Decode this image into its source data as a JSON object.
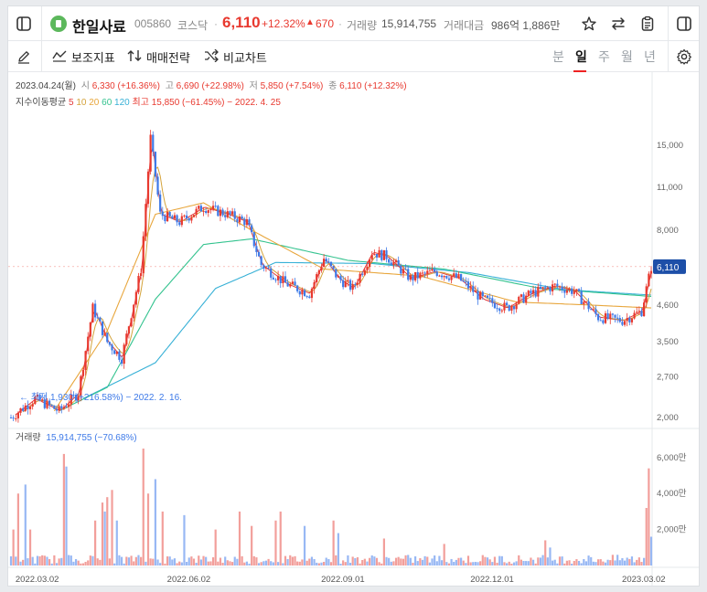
{
  "header": {
    "stock_name": "한일사료",
    "stock_code": "005860",
    "market": "코스닥",
    "price": "6,110",
    "change_pct": "+12.32%",
    "change_arrow": "▲",
    "change_abs": "670",
    "dot": "·",
    "volume_label": "거래량",
    "volume_value": "15,914,755",
    "amount_label": "거래대금",
    "amount_value": "986억 1,886만"
  },
  "toolbar": {
    "indicator_label": "보조지표",
    "strategy_label": "매매전략",
    "compare_label": "비교차트",
    "periods": [
      "분",
      "일",
      "주",
      "월",
      "년"
    ],
    "active_period": "일"
  },
  "info": {
    "date": "2023.04.24(월)",
    "open_label": "시",
    "open_value": "6,330 (+16.36%)",
    "high_label": "고",
    "high_value": "6,690 (+22.98%)",
    "low_label": "저",
    "low_value": "5,850 (+7.54%)",
    "close_label": "종",
    "close_value": "6,110 (+12.32%)"
  },
  "ma_legend": {
    "label": "지수이동평균",
    "periods": [
      "5",
      "10",
      "20",
      "60",
      "120"
    ],
    "high_note": "최고 15,850 (−61.45%) − 2022. 4. 25",
    "low_note": "← 최저 1,930 (+216.58%) − 2022. 2. 16."
  },
  "volume_info": {
    "label": "거래량",
    "value": "15,914,755 (−70.68%)"
  },
  "price_badge": "6,110",
  "colors": {
    "up": "#e8392f",
    "down": "#3e7ae8",
    "vol_up": "#f29f9b",
    "vol_down": "#98b8f4",
    "ma5": "#e23a3a",
    "ma10": "#d4a33b",
    "ma20": "#e8a63c",
    "ma60": "#34c38f",
    "ma120": "#36b0d6"
  },
  "icons": [
    "panel-left-icon",
    "star-icon",
    "swap-icon",
    "clipboard-icon",
    "panel-right-icon",
    "pencil-icon",
    "indicator-icon",
    "strategy-icon",
    "shuffle-icon",
    "gear-icon"
  ],
  "chart_data": {
    "type": "candlestick",
    "x_ticks": [
      "2022.03.02",
      "2022.06.02",
      "2022.09.01",
      "2022.12.01",
      "2023.03.02"
    ],
    "y_ticks": [
      "15,000",
      "11,000",
      "8,000",
      "6,000",
      "4,600",
      "3,500",
      "2,700",
      "2,000"
    ],
    "y_tick_values": [
      15000,
      11000,
      8000,
      6000,
      4600,
      3500,
      2700,
      2000
    ],
    "y_scale": "log",
    "vol_ticks": [
      "6,000만",
      "4,000만",
      "2,000만"
    ],
    "vol_tick_values": [
      60000000,
      40000000,
      20000000
    ],
    "close_path": [
      [
        0,
        2000
      ],
      [
        10,
        2300
      ],
      [
        20,
        2100
      ],
      [
        28,
        2400
      ],
      [
        34,
        4500
      ],
      [
        40,
        3500
      ],
      [
        46,
        3100
      ],
      [
        54,
        6000
      ],
      [
        58,
        15850
      ],
      [
        62,
        9000
      ],
      [
        70,
        8500
      ],
      [
        80,
        9500
      ],
      [
        90,
        9000
      ],
      [
        98,
        8500
      ],
      [
        104,
        6200
      ],
      [
        114,
        5400
      ],
      [
        124,
        5000
      ],
      [
        130,
        6500
      ],
      [
        136,
        5600
      ],
      [
        142,
        5200
      ],
      [
        150,
        6800
      ],
      [
        156,
        6600
      ],
      [
        166,
        5600
      ],
      [
        176,
        5900
      ],
      [
        186,
        5600
      ],
      [
        196,
        4800
      ],
      [
        206,
        4500
      ],
      [
        216,
        5000
      ],
      [
        226,
        5300
      ],
      [
        234,
        5100
      ],
      [
        244,
        4200
      ],
      [
        254,
        4100
      ],
      [
        262,
        4400
      ],
      [
        266,
        6110
      ]
    ],
    "ma_paths": {
      "ma20": [
        [
          18,
          2100
        ],
        [
          40,
          3800
        ],
        [
          60,
          9000
        ],
        [
          80,
          9800
        ],
        [
          100,
          8000
        ],
        [
          130,
          6000
        ],
        [
          170,
          5700
        ],
        [
          210,
          4700
        ],
        [
          240,
          4600
        ],
        [
          266,
          4500
        ]
      ],
      "ma60": [
        [
          20,
          2100
        ],
        [
          40,
          2500
        ],
        [
          60,
          4800
        ],
        [
          80,
          7200
        ],
        [
          100,
          7500
        ],
        [
          140,
          6400
        ],
        [
          180,
          6000
        ],
        [
          220,
          5200
        ],
        [
          266,
          4900
        ]
      ],
      "ma120": [
        [
          30,
          2300
        ],
        [
          60,
          3000
        ],
        [
          85,
          5200
        ],
        [
          110,
          6300
        ],
        [
          150,
          6250
        ],
        [
          190,
          5850
        ],
        [
          230,
          5150
        ],
        [
          266,
          4950
        ]
      ]
    },
    "volume_spikes": [
      [
        1,
        20,
        "up"
      ],
      [
        3,
        40,
        "up"
      ],
      [
        6,
        45,
        "down"
      ],
      [
        8,
        20,
        "up"
      ],
      [
        22,
        62,
        "up"
      ],
      [
        23,
        55,
        "down"
      ],
      [
        35,
        25,
        "up"
      ],
      [
        38,
        35,
        "up"
      ],
      [
        39,
        30,
        "down"
      ],
      [
        40,
        38,
        "up"
      ],
      [
        42,
        42,
        "up"
      ],
      [
        44,
        25,
        "down"
      ],
      [
        55,
        65,
        "up"
      ],
      [
        57,
        40,
        "up"
      ],
      [
        60,
        48,
        "down"
      ],
      [
        63,
        30,
        "up"
      ],
      [
        72,
        28,
        "down"
      ],
      [
        85,
        20,
        "up"
      ],
      [
        95,
        30,
        "up"
      ],
      [
        100,
        22,
        "up"
      ],
      [
        110,
        25,
        "up"
      ],
      [
        112,
        30,
        "up"
      ],
      [
        122,
        22,
        "down"
      ],
      [
        134,
        25,
        "up"
      ],
      [
        136,
        18,
        "down"
      ],
      [
        155,
        15,
        "up"
      ],
      [
        180,
        12,
        "up"
      ],
      [
        222,
        14,
        "up"
      ],
      [
        224,
        10,
        "down"
      ],
      [
        264,
        32,
        "up"
      ],
      [
        265,
        54,
        "up"
      ],
      [
        266,
        16,
        "down"
      ]
    ]
  }
}
